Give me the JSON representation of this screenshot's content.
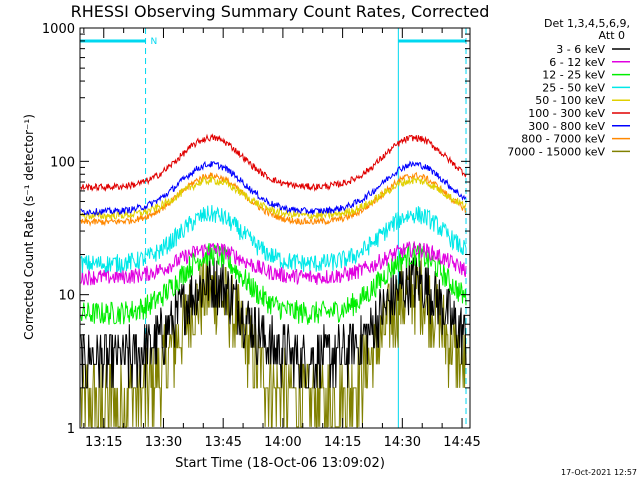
{
  "chart_data": {
    "type": "line",
    "title": "RHESSI Observing Summary Count Rates, Corrected",
    "xlabel": "Start Time (18-Oct-06 13:09:02)",
    "ylabel": "Corrected Count Rate (s⁻¹ detector⁻¹)",
    "yscale": "log",
    "ylim": [
      1,
      1000
    ],
    "xlim": [
      "13:09:02",
      "14:47:00"
    ],
    "x_ticks": [
      "13:15",
      "13:30",
      "13:45",
      "14:00",
      "14:15",
      "14:30",
      "14:45"
    ],
    "y_ticks": [
      "1",
      "10",
      "100",
      "1000"
    ],
    "legend": {
      "header": "Det 1,3,4,5,6,9,",
      "header2": "Att 0",
      "placement": "top-right"
    },
    "series": [
      {
        "name": "3 - 6 keV",
        "color": "#000000",
        "base": 3.3,
        "peak": 12.5,
        "noise": 0.22,
        "quant": true
      },
      {
        "name": "6 - 12 keV",
        "color": "#e000e0",
        "base": 13.5,
        "peak": 22,
        "noise": 0.06
      },
      {
        "name": "12 - 25 keV",
        "color": "#00ee00",
        "base": 7.2,
        "peak": 20,
        "noise": 0.09
      },
      {
        "name": "25 - 50 keV",
        "color": "#00e8e8",
        "base": 17,
        "peak": 40,
        "noise": 0.07
      },
      {
        "name": "50 - 100 keV",
        "color": "#e0d000",
        "base": 39,
        "peak": 72,
        "noise": 0.03
      },
      {
        "name": "100 - 300 keV",
        "color": "#e00000",
        "base": 64,
        "peak": 150,
        "noise": 0.025
      },
      {
        "name": "300 - 800 keV",
        "color": "#0000ff",
        "base": 42,
        "peak": 95,
        "noise": 0.025
      },
      {
        "name": "800 - 7000 keV",
        "color": "#ff8800",
        "base": 35,
        "peak": 78,
        "noise": 0.025
      },
      {
        "name": "7000 - 15000 keV",
        "color": "#808000",
        "base": 1.6,
        "peak": 10.5,
        "noise": 0.3,
        "quant": true
      }
    ],
    "peaks_minutes": [
      33,
      84
    ],
    "peak_width_minutes": 8,
    "night_intervals": [
      [
        "13:09:02",
        "13:25:30"
      ],
      [
        "14:29:00",
        "14:46:00"
      ]
    ],
    "saa_label": "N",
    "annotation_color": "#00d8f0"
  },
  "footer": {
    "timestamp": "17-Oct-2021 12:57"
  }
}
